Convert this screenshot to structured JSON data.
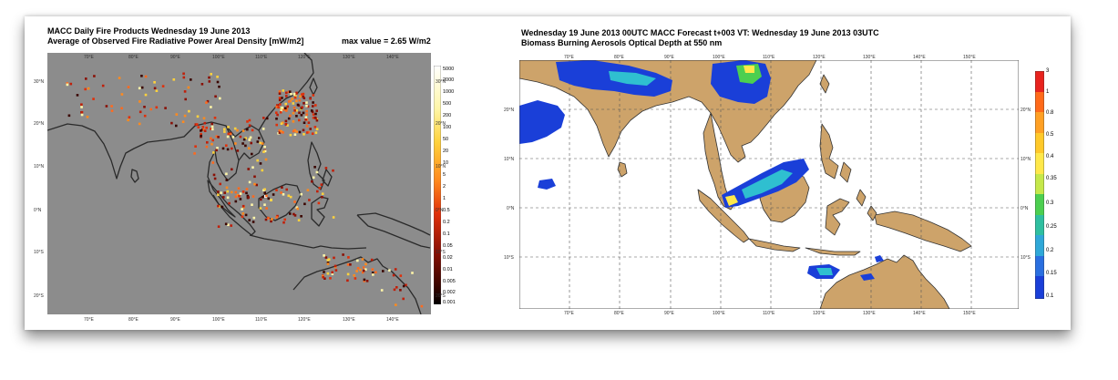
{
  "left_panel": {
    "title_line1": "MACC Daily Fire Products Wednesday 19 June 2013",
    "title_line2": "Average of Observed Fire Radiative Power Areal Density [mW/m2]",
    "max_value": "max value =  2.65 W/m2",
    "lon_ticks": [
      "70°E",
      "80°E",
      "90°E",
      "100°E",
      "110°E",
      "120°E",
      "130°E",
      "140°E"
    ],
    "lat_ticks": [
      "30°N",
      "20°N",
      "10°N",
      "0°N",
      "10°S",
      "20°S"
    ],
    "colorbar_labels": [
      "5000",
      "2000",
      "1000",
      "500",
      "200",
      "100",
      "50",
      "20",
      "10",
      "5",
      "2",
      "1",
      "0.5",
      "0.2",
      "0.1",
      "0.05",
      "0.02",
      "0.01",
      "0.005",
      "0.002",
      "0.001"
    ],
    "colors": {
      "background": "#8c8c8c",
      "coast": "#2a2a2a"
    }
  },
  "right_panel": {
    "title_line1": "Wednesday 19 June 2013 00UTC MACC Forecast t+003 VT: Wednesday 19 June 2013 03UTC",
    "title_line2": "Biomass Burning Aerosols Optical Depth at 550 nm",
    "lon_ticks": [
      "70°E",
      "80°E",
      "90°E",
      "100°E",
      "110°E",
      "120°E",
      "130°E",
      "140°E",
      "150°E"
    ],
    "lat_ticks": [
      "20°N",
      "10°N",
      "0°N",
      "10°S"
    ],
    "colorbar_labels": [
      "3",
      "1",
      "0.8",
      "0.5",
      "0.4",
      "0.35",
      "0.3",
      "0.25",
      "0.2",
      "0.15",
      "0.1"
    ],
    "colors": {
      "land": "#cda36a",
      "ocean": "#ffffff",
      "plume": "#1a3fd8"
    }
  }
}
